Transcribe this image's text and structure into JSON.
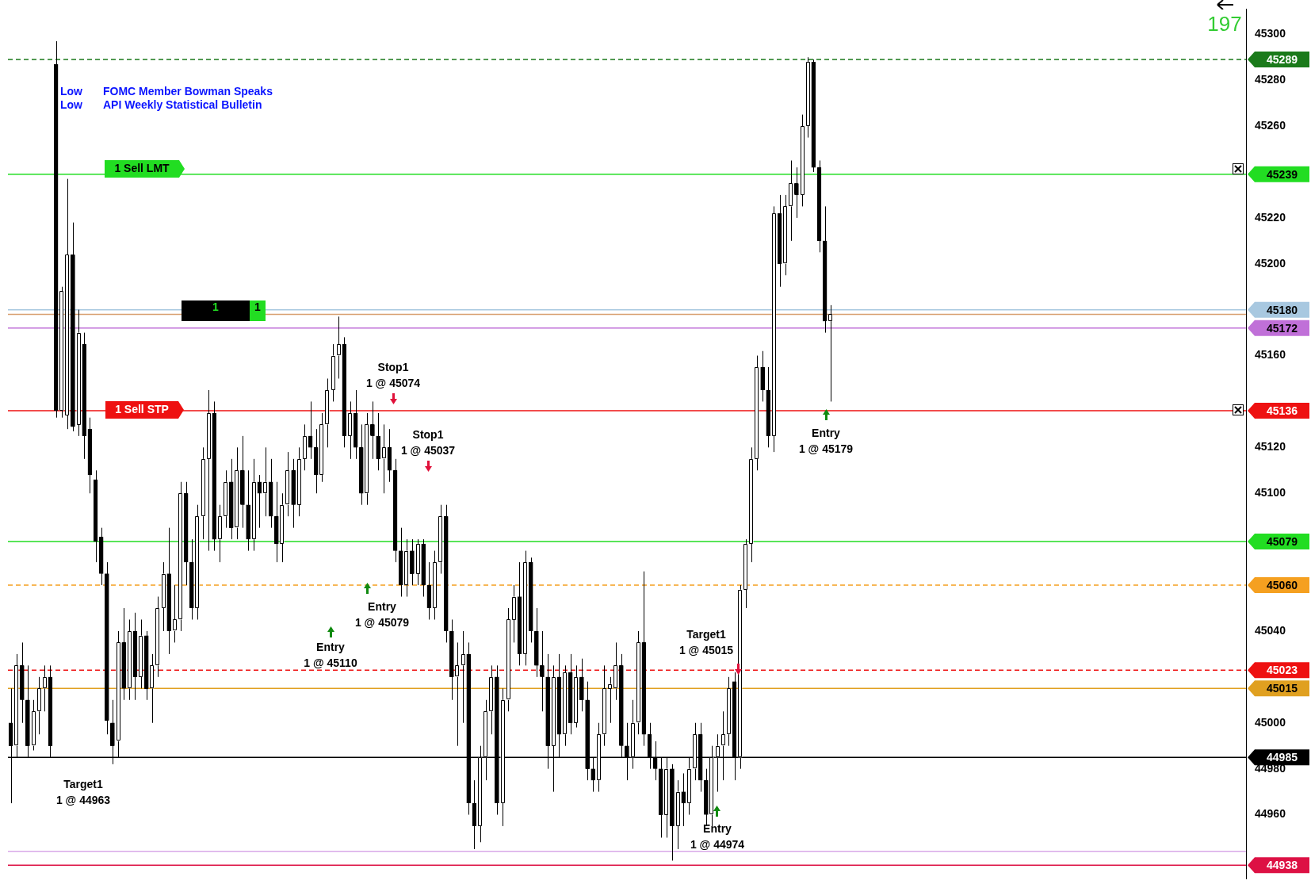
{
  "chart_data": {
    "type": "candlestick",
    "color": "#000000",
    "tick_labels": "y",
    "colors": [
      "#000000",
      "#ffffff",
      "#000000",
      "#000000",
      "#ffffff",
      "#ffffff",
      "#ffffff",
      "#000000",
      "#000000",
      "#ffffff",
      "#ffffff",
      "#000000",
      "#ffffff",
      "#000000",
      "#000000",
      "#000000",
      "#000000",
      "#000000",
      "#000000",
      "#ffffff",
      "#000000",
      "#ffffff",
      "#000000",
      "#ffffff",
      "#000000",
      "#ffffff",
      "#ffffff",
      "#ffffff",
      "#000000",
      "#ffffff",
      "#ffffff",
      "#000000",
      "#000000",
      "#ffffff",
      "#ffffff",
      "#ffffff",
      "#000000",
      "#ffffff",
      "#ffffff",
      "#000000",
      "#ffffff",
      "#000000",
      "#000000",
      "#ffffff",
      "#000000",
      "#ffffff",
      "#000000",
      "#000000",
      "#ffffff",
      "#ffffff",
      "#000000",
      "#ffffff",
      "#ffffff",
      "#000000",
      "#000000",
      "#ffffff",
      "#ffffff",
      "#ffffff",
      "#ffffff",
      "#000000",
      "#ffffff",
      "#000000",
      "#000000",
      "#ffffff",
      "#000000",
      "#000000",
      "#ffffff",
      "#000000",
      "#000000",
      "#000000",
      "#ffffff",
      "#000000",
      "#ffffff",
      "#000000",
      "#000000",
      "#ffffff",
      "#ffffff",
      "#000000",
      "#000000",
      "#ffffff",
      "#ffffff",
      "#000000",
      "#000000",
      "#ffffff",
      "#ffffff",
      "#ffffff",
      "#000000",
      "#ffffff",
      "#ffffff",
      "#ffffff",
      "#000000",
      "#ffffff",
      "#000000",
      "#000000",
      "#000000",
      "#000000",
      "#ffffff",
      "#000000",
      "#ffffff",
      "#000000",
      "#ffffff",
      "#000000",
      "#000000",
      "#000000",
      "#ffffff",
      "#ffffff",
      "#ffffff",
      "#ffffff",
      "#000000",
      "#000000",
      "#ffffff",
      "#ffffff",
      "#000000",
      "#000000",
      "#000000",
      "#000000",
      "#ffffff",
      "#000000",
      "#ffffff",
      "#000000",
      "#ffffff",
      "#ffffff",
      "#000000",
      "#000000",
      "#ffffff",
      "#ffffff",
      "#ffffff",
      "#ffffff",
      "#000000",
      "#ffffff",
      "#ffffff",
      "#ffffff",
      "#ffffff",
      "#000000",
      "#000000",
      "#ffffff",
      "#000000",
      "#ffffff",
      "#ffffff",
      "#000000",
      "#ffffff",
      "#ffffff",
      "#000000",
      "#000000",
      "#000000",
      "#ffffff",
      null,
      null,
      null,
      null,
      null,
      null,
      null,
      null,
      null,
      null,
      null,
      null,
      null,
      null,
      null,
      null,
      null,
      null,
      null,
      null,
      null,
      null,
      null,
      null,
      null,
      null,
      null,
      null,
      null,
      null,
      null,
      null,
      null,
      null,
      null,
      null,
      null,
      null,
      null,
      null,
      null,
      null,
      null,
      null,
      null,
      null,
      null,
      null,
      null,
      null,
      null,
      null,
      null,
      null,
      null,
      null,
      null,
      null,
      null,
      null,
      null,
      null,
      null,
      null,
      null,
      null,
      null,
      null,
      null,
      null,
      null,
      null,
      null
    ],
    "categories": [
      null,
      null,
      null,
      null,
      null,
      null,
      null,
      null,
      null,
      null,
      null,
      null,
      null,
      null,
      null,
      null,
      null,
      null,
      null,
      null,
      null,
      null,
      null,
      null,
      null,
      null,
      null,
      null,
      null,
      null,
      null,
      null,
      null,
      null,
      null,
      null,
      null,
      null,
      null,
      null,
      null,
      null,
      null,
      null,
      null,
      null,
      null,
      null,
      null,
      null,
      null,
      null,
      null,
      null,
      null,
      null,
      null,
      null,
      null,
      null,
      null,
      null,
      null,
      null,
      null,
      null,
      null,
      null,
      null,
      null,
      null,
      null,
      null,
      null,
      null,
      null,
      null,
      null,
      null,
      null,
      null,
      null,
      null,
      null,
      null,
      null,
      null,
      null,
      null,
      null,
      null,
      null,
      null,
      null,
      null,
      null,
      null,
      null,
      null,
      null,
      null,
      null,
      null,
      null,
      null,
      null,
      null,
      null,
      null,
      null,
      null,
      null,
      null,
      null,
      null,
      null,
      null,
      null,
      null,
      null,
      null,
      null,
      null,
      null,
      null,
      null,
      null,
      null,
      null,
      null,
      null,
      null,
      null,
      null,
      null,
      null,
      null,
      null,
      null,
      null,
      null,
      null,
      null,
      null,
      null,
      null,
      null,
      null,
      null,
      null,
      null,
      null,
      null,
      null,
      null,
      null,
      null,
      null,
      null,
      null,
      null,
      null,
      null,
      null,
      null,
      null,
      null,
      null,
      null,
      null,
      null,
      null,
      null,
      null,
      null,
      null,
      null,
      null,
      null,
      null,
      null,
      null,
      null,
      null,
      null,
      null,
      null,
      null,
      null,
      null,
      null,
      null,
      null,
      null,
      null,
      null,
      null,
      null,
      null,
      null,
      null,
      null,
      null,
      null,
      null,
      null,
      null,
      null,
      null,
      null,
      null,
      null,
      null,
      null,
      null,
      null,
      null,
      null,
      null
    ],
    "ohlc": [
      [
        45000,
        45015,
        44965,
        44990
      ],
      [
        44990,
        45030,
        44985,
        45025
      ],
      [
        45025,
        45035,
        45000,
        45010
      ],
      [
        45010,
        45025,
        44985,
        44990
      ],
      [
        44990,
        45010,
        44988,
        45005
      ],
      [
        45005,
        45020,
        44995,
        45015
      ],
      [
        45015,
        45025,
        45005,
        45020
      ],
      [
        45020,
        45025,
        44985,
        44990
      ],
      [
        45287,
        45297,
        45133,
        45136
      ],
      [
        45136,
        45190,
        45133,
        45188
      ],
      [
        45134,
        45237,
        45128,
        45204
      ],
      [
        45204,
        45218,
        45127,
        45129
      ],
      [
        45130,
        45180,
        45125,
        45170
      ],
      [
        45165,
        45170,
        45115,
        45125
      ],
      [
        45128,
        45133,
        45100,
        45108
      ],
      [
        45106,
        45110,
        45070,
        45079
      ],
      [
        45081,
        45085,
        45060,
        45065
      ],
      [
        45065,
        45070,
        44995,
        45001
      ],
      [
        45000,
        45010,
        44982,
        44990
      ],
      [
        44992,
        45040,
        44985,
        45035
      ],
      [
        45035,
        45050,
        45010,
        45015
      ],
      [
        45015,
        45045,
        45010,
        45040
      ],
      [
        45040,
        45048,
        45010,
        45020
      ],
      [
        45020,
        45045,
        45015,
        45038
      ],
      [
        45038,
        45040,
        45010,
        45015
      ],
      [
        45015,
        45030,
        45000,
        45025
      ],
      [
        45025,
        45055,
        45020,
        45050
      ],
      [
        45050,
        45070,
        45040,
        45065
      ],
      [
        45065,
        45085,
        45030,
        45040
      ],
      [
        45040,
        45060,
        45035,
        45045
      ],
      [
        45045,
        45105,
        45040,
        45100
      ],
      [
        45100,
        45105,
        45060,
        45070
      ],
      [
        45070,
        45080,
        45045,
        45050
      ],
      [
        45050,
        45095,
        45045,
        45090
      ],
      [
        45090,
        45120,
        45080,
        45115
      ],
      [
        45115,
        45145,
        45075,
        45135
      ],
      [
        45135,
        45140,
        45075,
        45080
      ],
      [
        45080,
        45095,
        45070,
        45090
      ],
      [
        45090,
        45110,
        45085,
        45105
      ],
      [
        45105,
        45115,
        45080,
        45085
      ],
      [
        45085,
        45120,
        45080,
        45110
      ],
      [
        45110,
        45125,
        45085,
        45095
      ],
      [
        45095,
        45110,
        45075,
        45080
      ],
      [
        45080,
        45115,
        45075,
        45105
      ],
      [
        45105,
        45108,
        45085,
        45100
      ],
      [
        45100,
        45120,
        45090,
        45105
      ],
      [
        45105,
        45115,
        45085,
        45090
      ],
      [
        45090,
        45105,
        45070,
        45078
      ],
      [
        45078,
        45100,
        45070,
        45095
      ],
      [
        45095,
        45118,
        45090,
        45110
      ],
      [
        45110,
        45115,
        45085,
        45095
      ],
      [
        45095,
        45120,
        45090,
        45115
      ],
      [
        45115,
        45130,
        45110,
        45125
      ],
      [
        45125,
        45140,
        45115,
        45120
      ],
      [
        45120,
        45128,
        45100,
        45108
      ],
      [
        45108,
        45135,
        45105,
        45130
      ],
      [
        45130,
        45150,
        45120,
        45145
      ],
      [
        45145,
        45165,
        45140,
        45160
      ],
      [
        45160,
        45177,
        45150,
        45165
      ],
      [
        45165,
        45168,
        45120,
        45125
      ],
      [
        45125,
        45140,
        45115,
        45135
      ],
      [
        45135,
        45145,
        45115,
        45120
      ],
      [
        45120,
        45130,
        45095,
        45100
      ],
      [
        45100,
        45135,
        45095,
        45130
      ],
      [
        45130,
        45140,
        45115,
        45125
      ],
      [
        45125,
        45135,
        45110,
        45115
      ],
      [
        45115,
        45130,
        45100,
        45120
      ],
      [
        45120,
        45128,
        45105,
        45110
      ],
      [
        45110,
        45115,
        45070,
        45075
      ],
      [
        45075,
        45085,
        45055,
        45060
      ],
      [
        45060,
        45080,
        45055,
        45075
      ],
      [
        45075,
        45080,
        45060,
        45065
      ],
      [
        45065,
        45080,
        45060,
        45078
      ],
      [
        45078,
        45080,
        45055,
        45060
      ],
      [
        45060,
        45070,
        45045,
        45050
      ],
      [
        45050,
        45075,
        45045,
        45070
      ],
      [
        45070,
        45095,
        45065,
        45090
      ],
      [
        45090,
        45095,
        45035,
        45040
      ],
      [
        45040,
        45045,
        45010,
        45020
      ],
      [
        45020,
        45035,
        44990,
        45025
      ],
      [
        45025,
        45040,
        45000,
        45030
      ],
      [
        45030,
        45035,
        44960,
        44965
      ],
      [
        44965,
        44975,
        44945,
        44955
      ],
      [
        44955,
        44990,
        44948,
        44985
      ],
      [
        44985,
        45010,
        44975,
        45005
      ],
      [
        45005,
        45025,
        44995,
        45020
      ],
      [
        45020,
        45025,
        44960,
        44965
      ],
      [
        44965,
        45015,
        44955,
        45010
      ],
      [
        45010,
        45050,
        45005,
        45045
      ],
      [
        45045,
        45060,
        45035,
        45055
      ],
      [
        45055,
        45070,
        45025,
        45030
      ],
      [
        45030,
        45075,
        45025,
        45070
      ],
      [
        45070,
        45072,
        45035,
        45040
      ],
      [
        45040,
        45050,
        45020,
        45025
      ],
      [
        45025,
        45040,
        45005,
        45020
      ],
      [
        45020,
        45030,
        44980,
        44990
      ],
      [
        44990,
        45025,
        44970,
        45020
      ],
      [
        45020,
        45030,
        44985,
        44995
      ],
      [
        44995,
        45025,
        44990,
        45022
      ],
      [
        45022,
        45030,
        44995,
        45000
      ],
      [
        45000,
        45025,
        44998,
        45020
      ],
      [
        45020,
        45028,
        45005,
        45010
      ],
      [
        45010,
        45018,
        44975,
        44980
      ],
      [
        44980,
        44985,
        44970,
        44975
      ],
      [
        44975,
        45000,
        44970,
        44995
      ],
      [
        44995,
        45025,
        44990,
        45015
      ],
      [
        45015,
        45020,
        45000,
        45017
      ],
      [
        45015,
        45035,
        45010,
        45025
      ],
      [
        45025,
        45030,
        44985,
        44990
      ],
      [
        44990,
        45000,
        44975,
        44985
      ],
      [
        44985,
        45010,
        44980,
        45000
      ],
      [
        45000,
        45040,
        44995,
        45035
      ],
      [
        45035,
        45066,
        44990,
        44995
      ],
      [
        44995,
        45000,
        44980,
        44985
      ],
      [
        44985,
        44992,
        44975,
        44980
      ],
      [
        44980,
        44985,
        44950,
        44960
      ],
      [
        44960,
        44985,
        44950,
        44980
      ],
      [
        44980,
        44982,
        44940,
        44955
      ],
      [
        44955,
        44975,
        44945,
        44970
      ],
      [
        44970,
        44978,
        44955,
        44965
      ],
      [
        44965,
        44985,
        44960,
        44980
      ],
      [
        44980,
        45000,
        44975,
        44995
      ],
      [
        44995,
        45000,
        44970,
        44975
      ],
      [
        44975,
        44980,
        44955,
        44960
      ],
      [
        44960,
        44990,
        44955,
        44985
      ],
      [
        44985,
        44995,
        44970,
        44990
      ],
      [
        44990,
        45005,
        44975,
        44995
      ],
      [
        44995,
        45020,
        44990,
        45015
      ],
      [
        45018,
        45022,
        44975,
        44985
      ],
      [
        44985,
        45060,
        44980,
        45058
      ],
      [
        45058,
        45080,
        45050,
        45078
      ],
      [
        45078,
        45120,
        45070,
        45115
      ],
      [
        45115,
        45160,
        45110,
        45155
      ],
      [
        45155,
        45162,
        45140,
        45145
      ],
      [
        45145,
        45155,
        45120,
        45125
      ],
      [
        45125,
        45225,
        45118,
        45222
      ],
      [
        45222,
        45230,
        45190,
        45200
      ],
      [
        45200,
        45230,
        45195,
        45225
      ],
      [
        45225,
        45245,
        45210,
        45235
      ],
      [
        45235,
        45242,
        45220,
        45230
      ],
      [
        45230,
        45265,
        45225,
        45260
      ],
      [
        45260,
        45290,
        45255,
        45288
      ],
      [
        45288,
        45289,
        45240,
        45242
      ],
      [
        45242,
        45245,
        45205,
        45210
      ],
      [
        45210,
        45225,
        45170,
        45175
      ],
      [
        45175,
        45182,
        45140,
        45178
      ],
      null,
      null,
      null,
      null,
      null,
      null,
      null,
      null,
      null,
      null,
      null,
      null,
      null,
      null,
      null,
      null,
      null,
      null,
      null,
      null,
      null,
      null,
      null,
      null,
      null,
      null,
      null,
      null,
      null,
      null,
      null,
      null,
      null,
      null,
      null,
      null,
      null,
      null,
      null,
      null,
      null,
      null,
      null,
      null,
      null,
      null,
      null,
      null,
      null,
      null,
      null,
      null,
      null,
      null,
      null,
      null,
      null,
      null,
      null,
      null,
      null,
      null,
      null,
      null,
      null,
      null,
      null,
      null,
      null,
      null,
      null,
      null,
      null
    ],
    "ylim": [
      44932,
      45311
    ],
    "yticks": [
      44960,
      44980,
      45000,
      45040,
      45100,
      45120,
      45160,
      45200,
      45220,
      45260,
      45280,
      45300
    ],
    "ref_lines": [
      {
        "axis": "y",
        "value": 45289,
        "label": "45289",
        "color": "#1a7a1a",
        "line_style": "dashed"
      },
      {
        "axis": "y",
        "value": 45239,
        "label": "45239",
        "color": "#22dd22",
        "line_style": "solid"
      },
      {
        "axis": "y",
        "value": 45180,
        "label": "45180",
        "color": "#a8c8e0",
        "line_style": "solid"
      },
      {
        "axis": "y",
        "value": 45178,
        "color": "#d8a070",
        "line_style": "solid"
      },
      {
        "axis": "y",
        "value": 45172,
        "label": "45172",
        "color": "#c070d8",
        "line_style": "solid"
      },
      {
        "axis": "y",
        "value": 45136,
        "label": "45136",
        "color": "#ee1111",
        "line_style": "solid"
      },
      {
        "axis": "y",
        "value": 45079,
        "label": "45079",
        "color": "#22dd22",
        "line_style": "solid"
      },
      {
        "axis": "y",
        "value": 45060,
        "label": "45060",
        "color": "#f5a020",
        "line_style": "dashed"
      },
      {
        "axis": "y",
        "value": 45023,
        "label": "45023",
        "color": "#ee1111",
        "line_style": "dashed"
      },
      {
        "axis": "y",
        "value": 45015,
        "label": "45015",
        "color": "#e0a020",
        "line_style": "solid"
      },
      {
        "axis": "y",
        "value": 44985,
        "label": "44985",
        "color": "#000000",
        "line_style": "solid"
      },
      {
        "axis": "y",
        "value": 44944,
        "color": "#d8a8e8",
        "line_style": "solid"
      },
      {
        "axis": "y",
        "value": 44938,
        "label": "44938",
        "color": "#dd1144",
        "line_style": "solid"
      }
    ],
    "annotations": [
      "Low",
      "FOMC Member Bowman Speaks",
      "Low",
      "API Weekly Statistical Bulletin",
      "1 Sell LMT",
      "1 Sell STP",
      "1",
      "1",
      "Stop1\n1 @ 45074",
      "Stop1\n1 @ 45037",
      "Entry\n1 @ 45079",
      "Entry\n1 @ 45110",
      "Target1\n1 @ 45015",
      "Entry\n1 @ 44974",
      "Entry\n1 @ 45179",
      "Target1\n1 @ 44963",
      "197"
    ]
  }
}
